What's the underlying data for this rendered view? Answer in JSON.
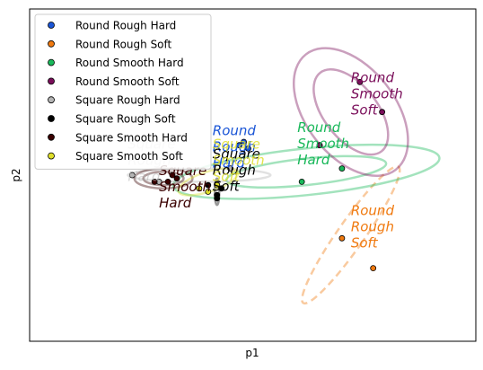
{
  "chart_data": {
    "type": "scatter",
    "xlabel": "p1",
    "ylabel": "p2",
    "xlim": [
      0,
      1
    ],
    "ylim": [
      0,
      1
    ],
    "xticks": false,
    "yticks": false,
    "grid": false,
    "legend_position": "top-left",
    "series": [
      {
        "name": "Round Rough Hard",
        "color": "#1a55d6",
        "label_text": "Round\nRough\nHard",
        "points": [
          [
            0.47,
            0.59
          ],
          [
            0.48,
            0.6
          ],
          [
            0.49,
            0.58
          ]
        ],
        "ellipses": []
      },
      {
        "name": "Round Rough Soft",
        "color": "#f07a10",
        "label_text": "Round\nRough\nSoft",
        "points": [
          [
            0.7,
            0.31
          ],
          [
            0.77,
            0.22
          ]
        ],
        "ellipses": [
          {
            "cx": 0.72,
            "cy": 0.32,
            "rx": 0.03,
            "ry": 0.25,
            "angle": -35,
            "style": "dashed"
          }
        ]
      },
      {
        "name": "Round Smooth Hard",
        "color": "#19b85a",
        "label_text": "Round\nSmooth\nHard",
        "points": [
          [
            0.61,
            0.48
          ],
          [
            0.7,
            0.52
          ]
        ],
        "ellipses": [
          {
            "cx": 0.62,
            "cy": 0.51,
            "rx": 0.18,
            "ry": 0.04,
            "angle": 6
          },
          {
            "cx": 0.62,
            "cy": 0.51,
            "rx": 0.3,
            "ry": 0.07,
            "angle": 6
          }
        ]
      },
      {
        "name": "Round Smooth Soft",
        "color": "#7a0e5a",
        "label_text": "Round\nSmooth\nSoft",
        "points": [
          [
            0.65,
            0.59
          ],
          [
            0.74,
            0.78
          ],
          [
            0.79,
            0.69
          ]
        ],
        "ellipses": [
          {
            "cx": 0.72,
            "cy": 0.69,
            "rx": 0.06,
            "ry": 0.15,
            "angle": 38
          },
          {
            "cx": 0.72,
            "cy": 0.69,
            "rx": 0.1,
            "ry": 0.22,
            "angle": 38
          }
        ]
      },
      {
        "name": "Square Rough Hard",
        "color": "#b4b4b4",
        "label_text": "Square\nRough\nHard",
        "points": [
          [
            0.23,
            0.5
          ],
          [
            0.29,
            0.48
          ],
          [
            0.45,
            0.52
          ]
        ],
        "ellipses": [
          {
            "cx": 0.38,
            "cy": 0.5,
            "rx": 0.16,
            "ry": 0.02,
            "angle": 0
          }
        ]
      },
      {
        "name": "Square Rough Soft",
        "color": "#000000",
        "label_text": "Square\nRough\nSoft",
        "points": [
          [
            0.4,
            0.47
          ],
          [
            0.42,
            0.44
          ],
          [
            0.42,
            0.43
          ],
          [
            0.43,
            0.46
          ]
        ],
        "ellipses": [
          {
            "cx": 0.42,
            "cy": 0.45,
            "rx": 0.005,
            "ry": 0.04,
            "angle": 0
          }
        ]
      },
      {
        "name": "Square Smooth Hard",
        "color": "#3a0000",
        "label_text": "Square\nSmooth\nHard",
        "points": [
          [
            0.28,
            0.48
          ],
          [
            0.31,
            0.48
          ],
          [
            0.32,
            0.5
          ],
          [
            0.33,
            0.49
          ]
        ],
        "ellipses": [
          {
            "cx": 0.3,
            "cy": 0.49,
            "rx": 0.045,
            "ry": 0.02,
            "angle": 0
          },
          {
            "cx": 0.3,
            "cy": 0.49,
            "rx": 0.065,
            "ry": 0.03,
            "angle": 0
          }
        ]
      },
      {
        "name": "Square Smooth Soft",
        "color": "#dede2a",
        "label_text": "Square\nSmooth\nSoft",
        "points": [
          [
            0.38,
            0.46
          ],
          [
            0.4,
            0.45
          ],
          [
            0.42,
            0.47
          ]
        ],
        "ellipses": [
          {
            "cx": 0.4,
            "cy": 0.48,
            "rx": 0.07,
            "ry": 0.03,
            "angle": 18
          }
        ]
      }
    ]
  }
}
